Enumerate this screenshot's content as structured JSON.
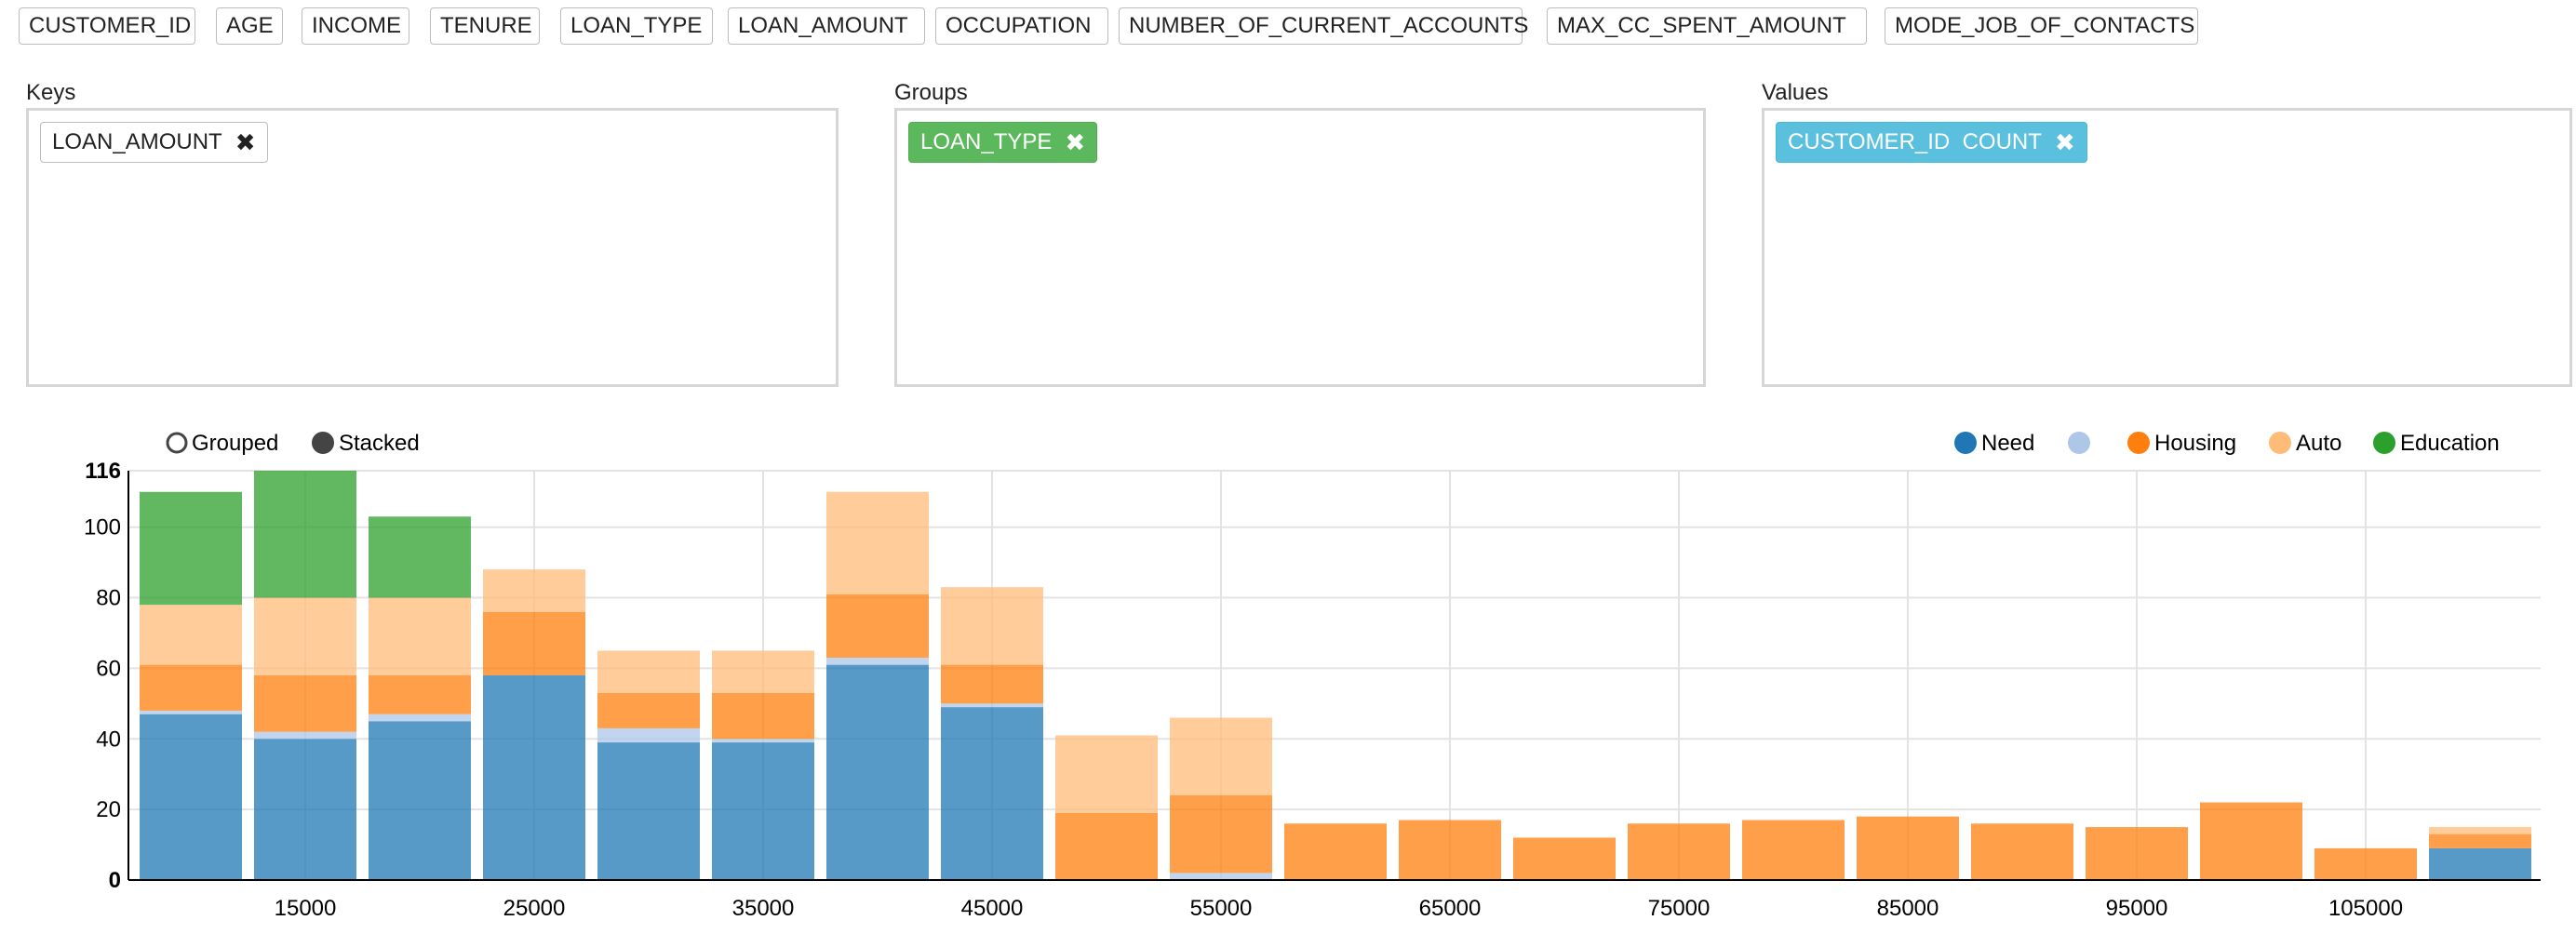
{
  "fields": [
    "CUSTOMER_ID",
    "AGE",
    "INCOME",
    "TENURE",
    "LOAN_TYPE",
    "LOAN_AMOUNT",
    "OCCUPATION",
    "NUMBER_OF_CURRENT_ACCOUNTS",
    "MAX_CC_SPENT_AMOUNT",
    "MODE_JOB_OF_CONTACTS"
  ],
  "zones": {
    "keys": {
      "label": "Keys",
      "chip": "LOAN_AMOUNT"
    },
    "groups": {
      "label": "Groups",
      "chip": "LOAN_TYPE"
    },
    "values": {
      "label": "Values",
      "chip": "CUSTOMER_ID  COUNT"
    }
  },
  "chip_close_glyph": "✖",
  "chart_controls": {
    "grouped": "Grouped",
    "stacked": "Stacked",
    "selected": "stacked"
  },
  "chart_data": {
    "type": "bar",
    "stacked": true,
    "title": "",
    "xlabel": "",
    "ylabel": "",
    "ylim": [
      0,
      116
    ],
    "y_ticks": [
      "0",
      "20",
      "40",
      "60",
      "80",
      "100",
      "116"
    ],
    "x_tick_labels": [
      "15000",
      "25000",
      "35000",
      "45000",
      "55000",
      "65000",
      "75000",
      "85000",
      "95000",
      "105000"
    ],
    "x_tick_values": [
      15000,
      25000,
      35000,
      45000,
      55000,
      65000,
      75000,
      85000,
      95000,
      105000
    ],
    "categories": [
      10000,
      15000,
      20000,
      25000,
      30000,
      35000,
      40000,
      45000,
      50000,
      55000,
      60000,
      65000,
      70000,
      75000,
      80000,
      85000,
      90000,
      95000,
      100000,
      105000,
      110000
    ],
    "grid": true,
    "legend_position": "top-right",
    "series": [
      {
        "name": "Need",
        "color": "#1f77b4",
        "values": [
          47,
          40,
          45,
          58,
          39,
          39,
          61,
          49,
          0,
          0,
          0,
          0,
          0,
          0,
          0,
          0,
          0,
          0,
          0,
          0,
          9
        ]
      },
      {
        "name": "",
        "color": "#aec7e8",
        "values": [
          1,
          2,
          2,
          0,
          4,
          1,
          2,
          1,
          0,
          2,
          0,
          0,
          0,
          0,
          0,
          0,
          0,
          0,
          0,
          0,
          0
        ]
      },
      {
        "name": "Housing",
        "color": "#ff7f0e",
        "values": [
          13,
          16,
          11,
          18,
          10,
          13,
          18,
          11,
          19,
          22,
          16,
          17,
          12,
          16,
          17,
          18,
          16,
          15,
          22,
          9,
          4
        ]
      },
      {
        "name": "Auto",
        "color": "#ffbb78",
        "values": [
          17,
          22,
          22,
          12,
          12,
          12,
          29,
          22,
          22,
          22,
          0,
          0,
          0,
          0,
          0,
          0,
          0,
          0,
          0,
          0,
          2
        ]
      },
      {
        "name": "Education",
        "color": "#2ca02c",
        "values": [
          32,
          36,
          23,
          0,
          0,
          0,
          0,
          0,
          0,
          0,
          0,
          0,
          0,
          0,
          0,
          0,
          0,
          0,
          0,
          0,
          0
        ]
      }
    ]
  }
}
